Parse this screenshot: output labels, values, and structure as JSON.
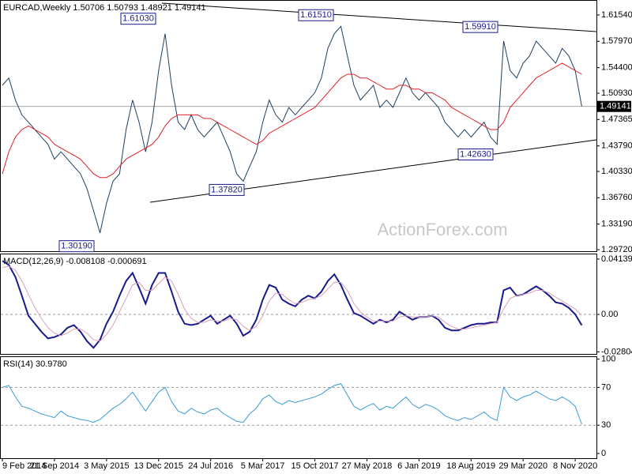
{
  "chart_data": [
    {
      "type": "line",
      "title": "EURCAD,Weekly  1.50706 1.50793 1.48921 1.49141",
      "watermark": "ActionForex.com",
      "ylim": [
        1.2951,
        1.6357
      ],
      "yticks": [
        {
          "value": 1.6154,
          "label": "1.61540"
        },
        {
          "value": 1.5797,
          "label": "1.57970"
        },
        {
          "value": 1.544,
          "label": "1.54400"
        },
        {
          "value": 1.5093,
          "label": "1.50930"
        },
        1.47365,
        {
          "value": 1.4379,
          "label": "1.43790"
        },
        {
          "value": 1.4033,
          "label": "1.40330"
        },
        {
          "value": 1.3676,
          "label": "1.36760"
        },
        {
          "value": 1.3319,
          "label": "1.33190"
        },
        {
          "value": 1.2972,
          "label": "1.29720"
        }
      ],
      "last_price": 1.49141,
      "annotations": [
        {
          "value": 1.6103,
          "label": "1.61030"
        },
        {
          "value": 1.6151,
          "label": "1.61510"
        },
        {
          "value": 1.5991,
          "label": "1.59910"
        },
        {
          "value": 1.3782,
          "label": "1.37820"
        },
        {
          "value": 1.4263,
          "label": "1.42630"
        },
        {
          "value": 1.3019,
          "label": "1.30190"
        }
      ],
      "series": [
        {
          "color": "#1f3f5f",
          "values": [
            1.52,
            1.53,
            1.5,
            1.48,
            1.47,
            1.46,
            1.45,
            1.44,
            1.42,
            1.43,
            1.42,
            1.41,
            1.4,
            1.38,
            1.35,
            1.32,
            1.36,
            1.39,
            1.4,
            1.46,
            1.5,
            1.47,
            1.43,
            1.47,
            1.54,
            1.59,
            1.52,
            1.47,
            1.46,
            1.48,
            1.46,
            1.45,
            1.46,
            1.47,
            1.45,
            1.43,
            1.4,
            1.39,
            1.41,
            1.43,
            1.47,
            1.5,
            1.48,
            1.47,
            1.49,
            1.48,
            1.49,
            1.5,
            1.51,
            1.53,
            1.57,
            1.59,
            1.6,
            1.56,
            1.52,
            1.5,
            1.51,
            1.52,
            1.49,
            1.5,
            1.49,
            1.51,
            1.53,
            1.51,
            1.5,
            1.51,
            1.5,
            1.49,
            1.47,
            1.46,
            1.45,
            1.46,
            1.45,
            1.46,
            1.47,
            1.45,
            1.44,
            1.58,
            1.54,
            1.53,
            1.55,
            1.56,
            1.58,
            1.57,
            1.56,
            1.55,
            1.57,
            1.56,
            1.54,
            1.49141
          ]
        },
        {
          "color": "#e0202a",
          "values": [
            1.4,
            1.43,
            1.45,
            1.46,
            1.465,
            1.46,
            1.455,
            1.45,
            1.44,
            1.435,
            1.43,
            1.425,
            1.42,
            1.41,
            1.4,
            1.395,
            1.395,
            1.4,
            1.41,
            1.42,
            1.425,
            1.43,
            1.435,
            1.44,
            1.45,
            1.465,
            1.475,
            1.48,
            1.48,
            1.48,
            1.48,
            1.475,
            1.475,
            1.47,
            1.465,
            1.46,
            1.455,
            1.45,
            1.445,
            1.44,
            1.445,
            1.455,
            1.46,
            1.465,
            1.47,
            1.475,
            1.48,
            1.485,
            1.49,
            1.5,
            1.51,
            1.52,
            1.53,
            1.535,
            1.535,
            1.53,
            1.53,
            1.525,
            1.52,
            1.515,
            1.515,
            1.52,
            1.52,
            1.515,
            1.515,
            1.51,
            1.51,
            1.505,
            1.5,
            1.49,
            1.485,
            1.48,
            1.475,
            1.47,
            1.465,
            1.46,
            1.46,
            1.47,
            1.49,
            1.5,
            1.51,
            1.52,
            1.53,
            1.535,
            1.54,
            1.545,
            1.55,
            1.545,
            1.54,
            1.535
          ]
        }
      ]
    },
    {
      "type": "line",
      "title": "MACD(12,26,9) -0.008108 -0.000691",
      "ylim": [
        -0.0296,
        0.0455
      ],
      "yticks": [
        0.04139,
        {
          "value": 0,
          "label": "0.00"
        },
        -0.02804
      ],
      "levels": [
        0
      ],
      "series": [
        {
          "color": "#1a1a8c",
          "values": [
            0.04,
            0.037,
            0.028,
            0.014,
            -0.001,
            -0.007,
            -0.013,
            -0.018,
            -0.017,
            -0.015,
            -0.01,
            -0.008,
            -0.013,
            -0.02,
            -0.025,
            -0.019,
            -0.007,
            0.002,
            0.014,
            0.025,
            0.031,
            0.02,
            0.008,
            0.022,
            0.031,
            0.031,
            0.017,
            0.002,
            -0.007,
            -0.008,
            -0.007,
            -0.004,
            -0.001,
            -0.007,
            -0.004,
            -0.001,
            -0.007,
            -0.016,
            -0.013,
            -0.004,
            0.011,
            0.022,
            0.02,
            0.011,
            0.008,
            0.006,
            0.011,
            0.014,
            0.012,
            0.017,
            0.025,
            0.03,
            0.022,
            0.011,
            0.001,
            -0.001,
            -0.004,
            -0.007,
            -0.004,
            -0.006,
            -0.004,
            0.002,
            -0.001,
            -0.004,
            -0.002,
            -0.002,
            -0.001,
            -0.004,
            -0.01,
            -0.012,
            -0.012,
            -0.01,
            -0.008,
            -0.007,
            -0.007,
            -0.006,
            -0.006,
            0.018,
            0.02,
            0.014,
            0.015,
            0.018,
            0.021,
            0.018,
            0.014,
            0.009,
            0.008,
            0.005,
            0.0,
            -0.008108
          ]
        },
        {
          "color": "#d9a0b8",
          "values": [
            0.035,
            0.036,
            0.033,
            0.025,
            0.015,
            0.005,
            -0.003,
            -0.01,
            -0.014,
            -0.016,
            -0.014,
            -0.011,
            -0.011,
            -0.014,
            -0.019,
            -0.02,
            -0.015,
            -0.008,
            0.002,
            0.012,
            0.022,
            0.024,
            0.018,
            0.018,
            0.023,
            0.028,
            0.025,
            0.015,
            0.004,
            -0.003,
            -0.006,
            -0.006,
            -0.004,
            -0.005,
            -0.005,
            -0.003,
            -0.004,
            -0.009,
            -0.012,
            -0.009,
            -0.001,
            0.01,
            0.016,
            0.015,
            0.011,
            0.008,
            0.009,
            0.011,
            0.012,
            0.014,
            0.019,
            0.024,
            0.024,
            0.018,
            0.008,
            0.002,
            -0.002,
            -0.005,
            -0.005,
            -0.005,
            -0.005,
            -0.002,
            -0.001,
            -0.002,
            -0.002,
            -0.002,
            -0.001,
            -0.002,
            -0.006,
            -0.009,
            -0.011,
            -0.011,
            -0.01,
            -0.009,
            -0.008,
            -0.007,
            -0.006,
            0.004,
            0.012,
            0.014,
            0.015,
            0.016,
            0.018,
            0.018,
            0.016,
            0.013,
            0.01,
            0.007,
            0.004,
            -0.000691
          ]
        }
      ]
    },
    {
      "type": "line",
      "title": "RSI(14) 30.9780",
      "ylim": [
        -5,
        103
      ],
      "yticks": [
        100,
        70,
        30,
        0
      ],
      "levels": [
        70,
        30
      ],
      "categories": [
        "9 Feb 2014",
        null,
        null,
        null,
        null,
        null,
        null,
        null,
        "21 Sep 2014",
        null,
        null,
        null,
        null,
        null,
        null,
        null,
        "3 May 2015",
        null,
        null,
        null,
        null,
        null,
        null,
        null,
        "13 Dec 2015",
        null,
        null,
        null,
        null,
        null,
        null,
        null,
        "24 Jul 2016",
        null,
        null,
        null,
        null,
        null,
        null,
        null,
        "5 Mar 2017",
        null,
        null,
        null,
        null,
        null,
        null,
        null,
        "15 Oct 2017",
        null,
        null,
        null,
        null,
        null,
        null,
        null,
        "27 May 2018",
        null,
        null,
        null,
        null,
        null,
        null,
        null,
        "6 Jan 2019",
        null,
        null,
        null,
        null,
        null,
        null,
        null,
        "18 Aug 2019",
        null,
        null,
        null,
        null,
        null,
        null,
        null,
        "29 Mar 2020",
        null,
        null,
        null,
        null,
        null,
        null,
        null,
        "8 Nov 2020",
        null
      ],
      "series": [
        {
          "color": "#3a9ad9",
          "values": [
            70,
            72,
            60,
            50,
            48,
            45,
            42,
            40,
            38,
            45,
            40,
            38,
            36,
            35,
            33,
            36,
            42,
            48,
            52,
            58,
            65,
            55,
            45,
            55,
            65,
            70,
            55,
            45,
            42,
            48,
            44,
            42,
            46,
            48,
            42,
            38,
            34,
            33,
            42,
            48,
            58,
            62,
            55,
            52,
            56,
            54,
            56,
            58,
            60,
            63,
            68,
            72,
            74,
            62,
            50,
            46,
            50,
            53,
            46,
            50,
            48,
            54,
            60,
            52,
            48,
            52,
            50,
            46,
            40,
            37,
            35,
            38,
            36,
            40,
            44,
            38,
            35,
            70,
            60,
            56,
            60,
            62,
            66,
            62,
            58,
            56,
            60,
            56,
            50,
            30.978
          ]
        }
      ]
    }
  ]
}
